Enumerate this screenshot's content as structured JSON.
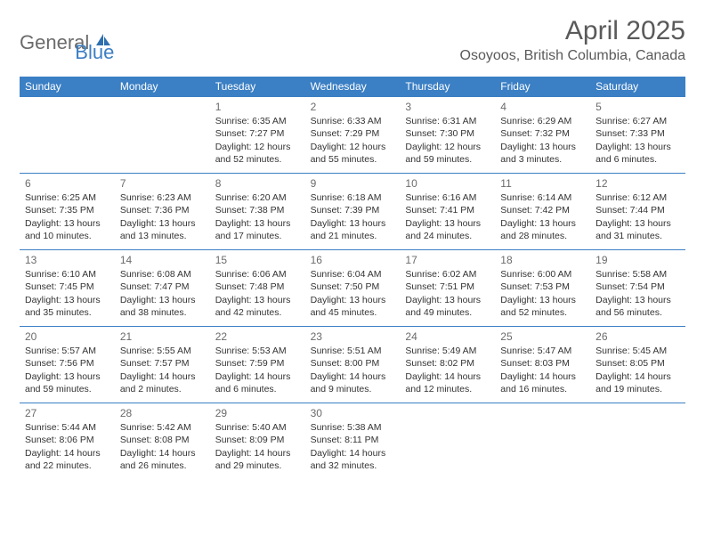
{
  "brand": {
    "part1": "General",
    "part2": "Blue"
  },
  "title": {
    "month": "April 2025",
    "location": "Osoyoos, British Columbia, Canada"
  },
  "colors": {
    "accent": "#3b7fc4",
    "header_text": "#ffffff",
    "body_text": "#333333",
    "muted_text": "#6b6b6b",
    "background": "#ffffff"
  },
  "weekdays": [
    "Sunday",
    "Monday",
    "Tuesday",
    "Wednesday",
    "Thursday",
    "Friday",
    "Saturday"
  ],
  "layout": {
    "first_weekday_index": 2,
    "num_days": 30,
    "rows": 5,
    "cols": 7
  },
  "days": [
    {
      "n": 1,
      "sunrise": "Sunrise: 6:35 AM",
      "sunset": "Sunset: 7:27 PM",
      "daylight": "Daylight: 12 hours and 52 minutes."
    },
    {
      "n": 2,
      "sunrise": "Sunrise: 6:33 AM",
      "sunset": "Sunset: 7:29 PM",
      "daylight": "Daylight: 12 hours and 55 minutes."
    },
    {
      "n": 3,
      "sunrise": "Sunrise: 6:31 AM",
      "sunset": "Sunset: 7:30 PM",
      "daylight": "Daylight: 12 hours and 59 minutes."
    },
    {
      "n": 4,
      "sunrise": "Sunrise: 6:29 AM",
      "sunset": "Sunset: 7:32 PM",
      "daylight": "Daylight: 13 hours and 3 minutes."
    },
    {
      "n": 5,
      "sunrise": "Sunrise: 6:27 AM",
      "sunset": "Sunset: 7:33 PM",
      "daylight": "Daylight: 13 hours and 6 minutes."
    },
    {
      "n": 6,
      "sunrise": "Sunrise: 6:25 AM",
      "sunset": "Sunset: 7:35 PM",
      "daylight": "Daylight: 13 hours and 10 minutes."
    },
    {
      "n": 7,
      "sunrise": "Sunrise: 6:23 AM",
      "sunset": "Sunset: 7:36 PM",
      "daylight": "Daylight: 13 hours and 13 minutes."
    },
    {
      "n": 8,
      "sunrise": "Sunrise: 6:20 AM",
      "sunset": "Sunset: 7:38 PM",
      "daylight": "Daylight: 13 hours and 17 minutes."
    },
    {
      "n": 9,
      "sunrise": "Sunrise: 6:18 AM",
      "sunset": "Sunset: 7:39 PM",
      "daylight": "Daylight: 13 hours and 21 minutes."
    },
    {
      "n": 10,
      "sunrise": "Sunrise: 6:16 AM",
      "sunset": "Sunset: 7:41 PM",
      "daylight": "Daylight: 13 hours and 24 minutes."
    },
    {
      "n": 11,
      "sunrise": "Sunrise: 6:14 AM",
      "sunset": "Sunset: 7:42 PM",
      "daylight": "Daylight: 13 hours and 28 minutes."
    },
    {
      "n": 12,
      "sunrise": "Sunrise: 6:12 AM",
      "sunset": "Sunset: 7:44 PM",
      "daylight": "Daylight: 13 hours and 31 minutes."
    },
    {
      "n": 13,
      "sunrise": "Sunrise: 6:10 AM",
      "sunset": "Sunset: 7:45 PM",
      "daylight": "Daylight: 13 hours and 35 minutes."
    },
    {
      "n": 14,
      "sunrise": "Sunrise: 6:08 AM",
      "sunset": "Sunset: 7:47 PM",
      "daylight": "Daylight: 13 hours and 38 minutes."
    },
    {
      "n": 15,
      "sunrise": "Sunrise: 6:06 AM",
      "sunset": "Sunset: 7:48 PM",
      "daylight": "Daylight: 13 hours and 42 minutes."
    },
    {
      "n": 16,
      "sunrise": "Sunrise: 6:04 AM",
      "sunset": "Sunset: 7:50 PM",
      "daylight": "Daylight: 13 hours and 45 minutes."
    },
    {
      "n": 17,
      "sunrise": "Sunrise: 6:02 AM",
      "sunset": "Sunset: 7:51 PM",
      "daylight": "Daylight: 13 hours and 49 minutes."
    },
    {
      "n": 18,
      "sunrise": "Sunrise: 6:00 AM",
      "sunset": "Sunset: 7:53 PM",
      "daylight": "Daylight: 13 hours and 52 minutes."
    },
    {
      "n": 19,
      "sunrise": "Sunrise: 5:58 AM",
      "sunset": "Sunset: 7:54 PM",
      "daylight": "Daylight: 13 hours and 56 minutes."
    },
    {
      "n": 20,
      "sunrise": "Sunrise: 5:57 AM",
      "sunset": "Sunset: 7:56 PM",
      "daylight": "Daylight: 13 hours and 59 minutes."
    },
    {
      "n": 21,
      "sunrise": "Sunrise: 5:55 AM",
      "sunset": "Sunset: 7:57 PM",
      "daylight": "Daylight: 14 hours and 2 minutes."
    },
    {
      "n": 22,
      "sunrise": "Sunrise: 5:53 AM",
      "sunset": "Sunset: 7:59 PM",
      "daylight": "Daylight: 14 hours and 6 minutes."
    },
    {
      "n": 23,
      "sunrise": "Sunrise: 5:51 AM",
      "sunset": "Sunset: 8:00 PM",
      "daylight": "Daylight: 14 hours and 9 minutes."
    },
    {
      "n": 24,
      "sunrise": "Sunrise: 5:49 AM",
      "sunset": "Sunset: 8:02 PM",
      "daylight": "Daylight: 14 hours and 12 minutes."
    },
    {
      "n": 25,
      "sunrise": "Sunrise: 5:47 AM",
      "sunset": "Sunset: 8:03 PM",
      "daylight": "Daylight: 14 hours and 16 minutes."
    },
    {
      "n": 26,
      "sunrise": "Sunrise: 5:45 AM",
      "sunset": "Sunset: 8:05 PM",
      "daylight": "Daylight: 14 hours and 19 minutes."
    },
    {
      "n": 27,
      "sunrise": "Sunrise: 5:44 AM",
      "sunset": "Sunset: 8:06 PM",
      "daylight": "Daylight: 14 hours and 22 minutes."
    },
    {
      "n": 28,
      "sunrise": "Sunrise: 5:42 AM",
      "sunset": "Sunset: 8:08 PM",
      "daylight": "Daylight: 14 hours and 26 minutes."
    },
    {
      "n": 29,
      "sunrise": "Sunrise: 5:40 AM",
      "sunset": "Sunset: 8:09 PM",
      "daylight": "Daylight: 14 hours and 29 minutes."
    },
    {
      "n": 30,
      "sunrise": "Sunrise: 5:38 AM",
      "sunset": "Sunset: 8:11 PM",
      "daylight": "Daylight: 14 hours and 32 minutes."
    }
  ]
}
